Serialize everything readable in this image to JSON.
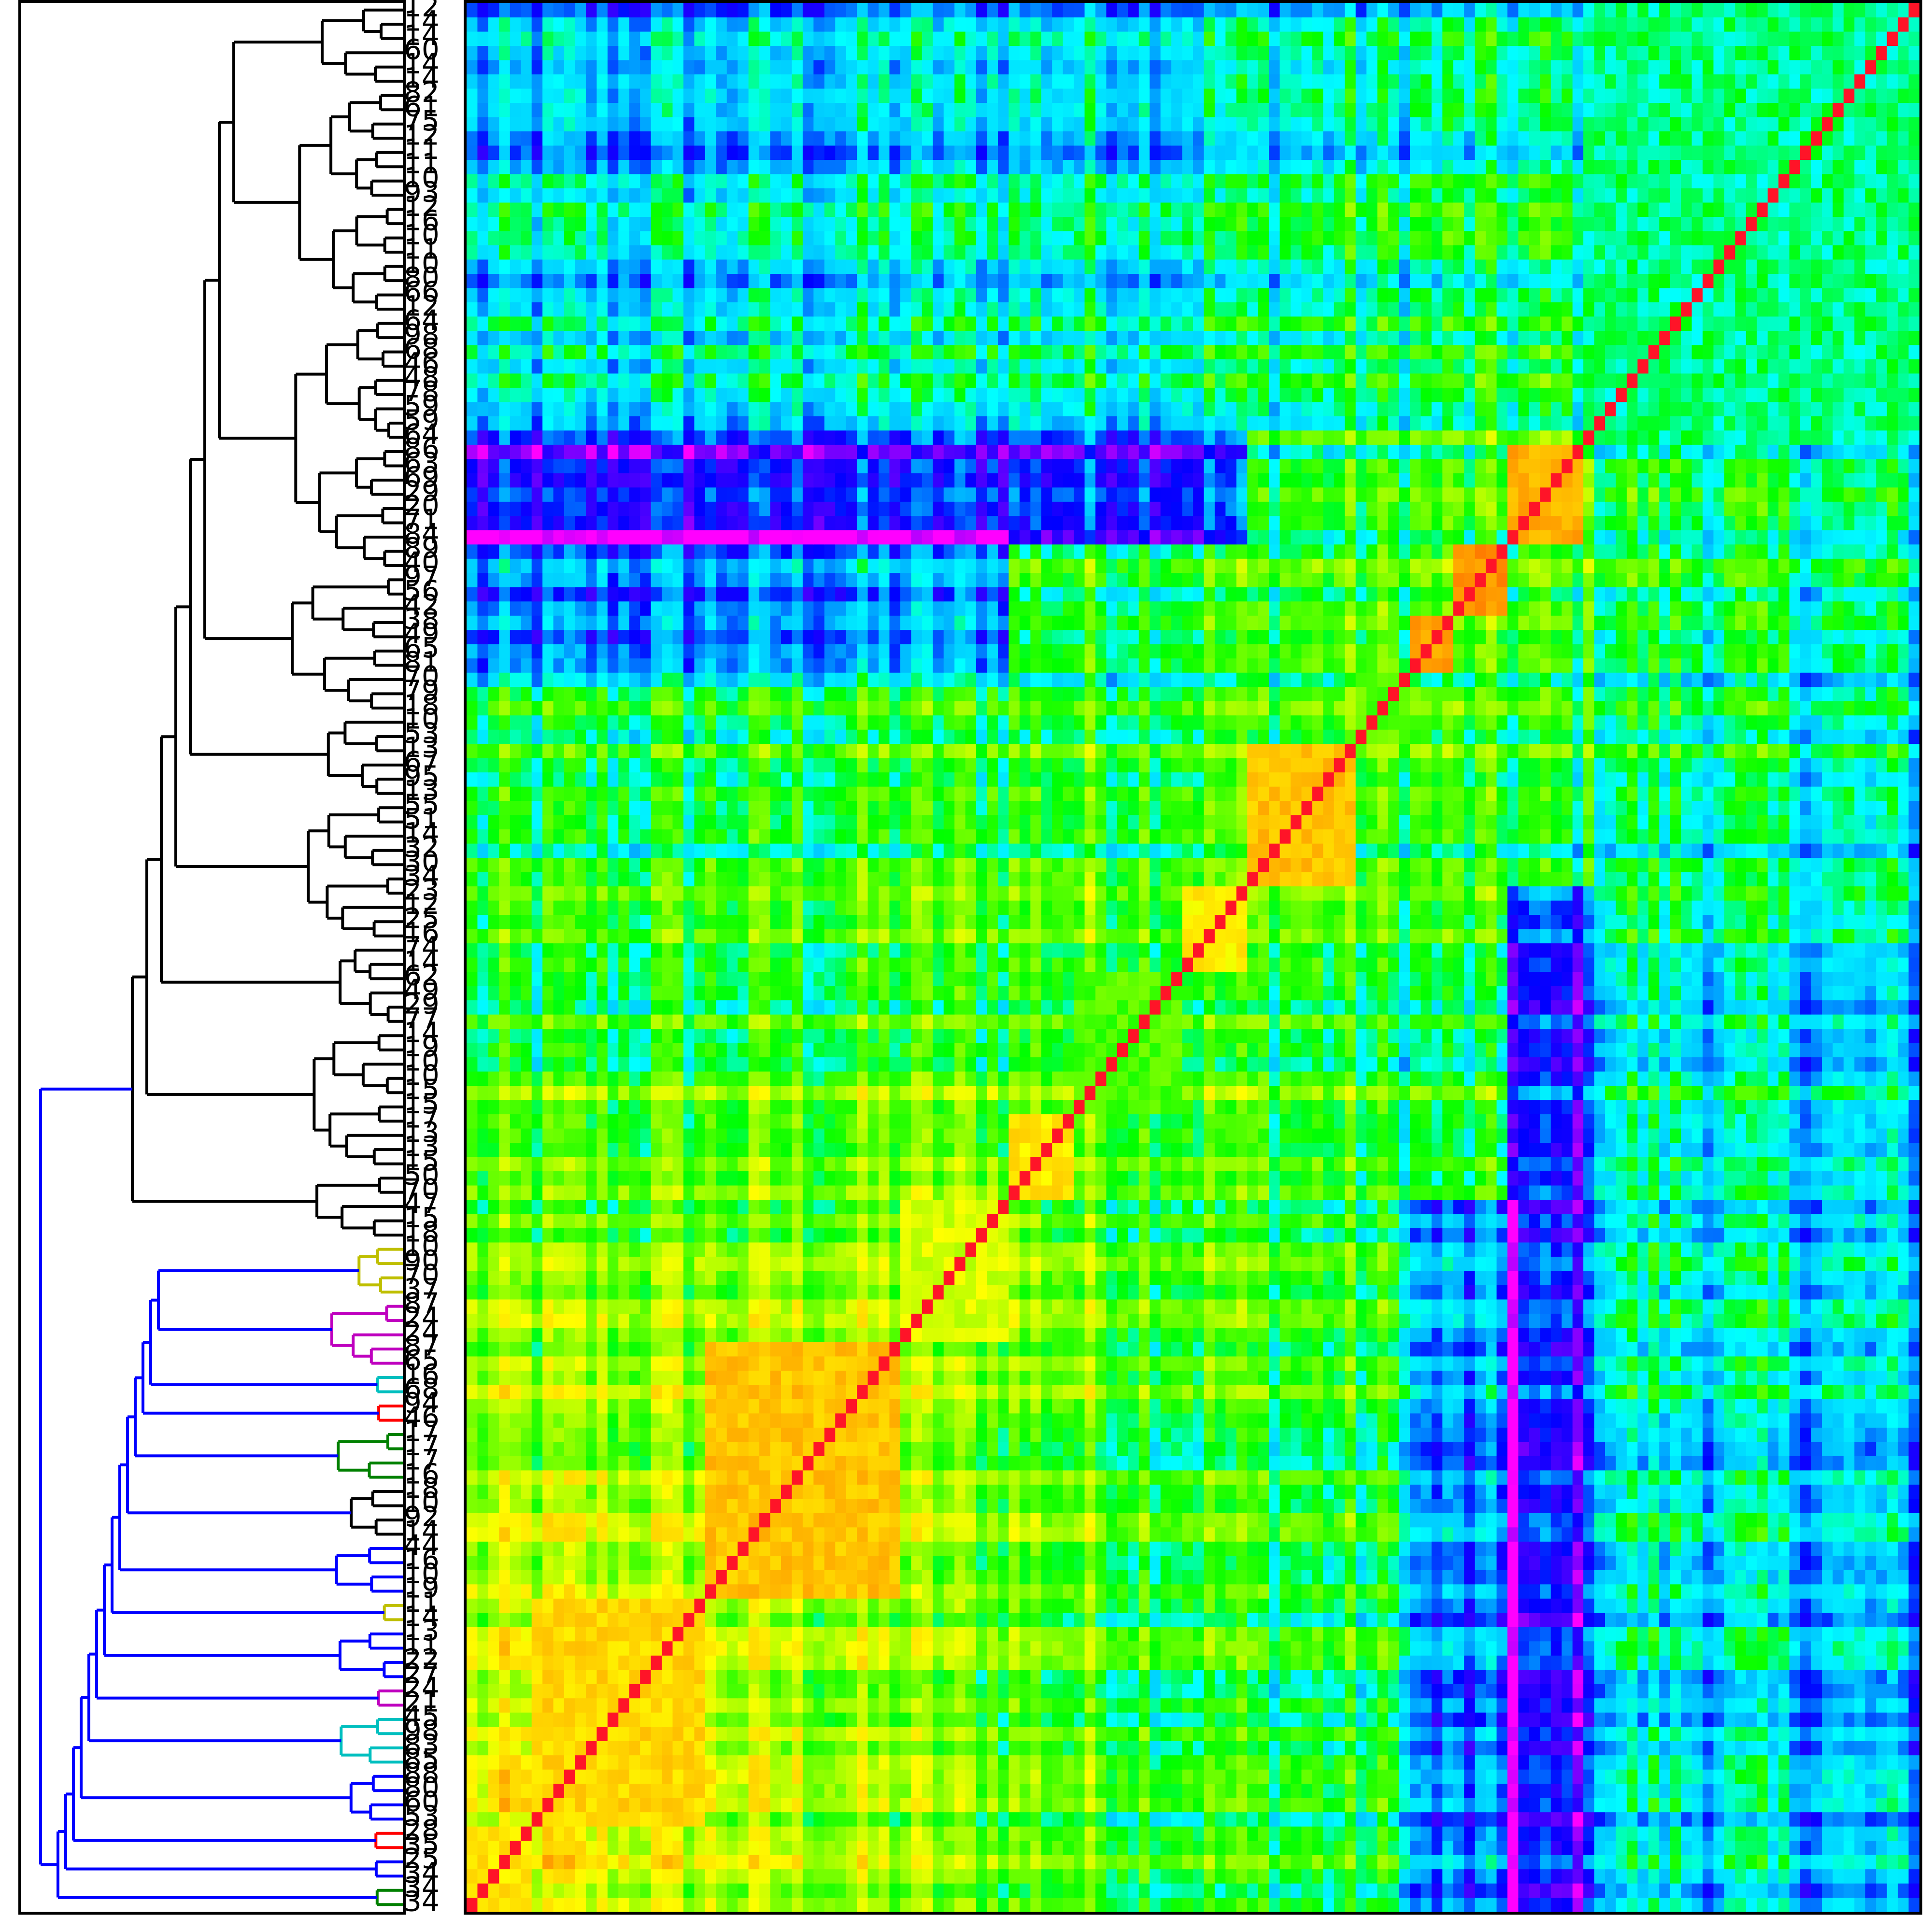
{
  "chart_data": {
    "type": "heatmap",
    "subtype": "clustered similarity matrix with left dendrogram",
    "title": "",
    "xlabel": "",
    "ylabel": "",
    "colormap": "gist_rainbow style: magenta (low) → blue → cyan → green → yellow → orange → red (high)",
    "diagonal_value": 1.0,
    "value_range": [
      0.0,
      1.0
    ],
    "grid": false,
    "legend": "none",
    "n_leaves": 134,
    "row_labels_top_to_bottom": [
      "12",
      "14",
      "14",
      "60",
      "14",
      "14",
      "82",
      "61",
      "75",
      "12",
      "11",
      "11",
      "10",
      "93",
      "12",
      "16",
      "10",
      "11",
      "10",
      "80",
      "66",
      "12",
      "64",
      "98",
      "68",
      "46",
      "48",
      "78",
      "59",
      "59",
      "64",
      "86",
      "63",
      "69",
      "29",
      "20",
      "71",
      "84",
      "89",
      "40",
      "97",
      "56",
      "42",
      "38",
      "49",
      "65",
      "81",
      "70",
      "79",
      "18",
      "10",
      "53",
      "13",
      "67",
      "95",
      "13",
      "55",
      "51",
      "14",
      "32",
      "30",
      "34",
      "23",
      "12",
      "25",
      "16",
      "74",
      "14",
      "62",
      "49",
      "29",
      "77",
      "14",
      "19",
      "10",
      "10",
      "15",
      "15",
      "17",
      "13",
      "13",
      "15",
      "50",
      "70",
      "47",
      "15",
      "18",
      "10",
      "90",
      "70",
      "37",
      "87",
      "24",
      "24",
      "87",
      "65",
      "16",
      "68",
      "94",
      "46",
      "17",
      "17",
      "17",
      "16",
      "18",
      "10",
      "92",
      "14",
      "44",
      "16",
      "10",
      "19",
      "11",
      "14",
      "13",
      "11",
      "22",
      "27",
      "24",
      "21",
      "45",
      "98",
      "83",
      "85",
      "88",
      "80",
      "60",
      "53",
      "28",
      "35",
      "25",
      "34",
      "34",
      "34"
    ],
    "diagonal_blocks_top_to_bottom": [
      {
        "rows": "first ≈6 (12,14,14,60,14,14)",
        "internal_similarity": 0.8
      },
      {
        "rows": "82 → 98 group",
        "internal_similarity": 0.82
      },
      {
        "rows": "68 → 89 group",
        "internal_similarity": 0.85
      },
      {
        "rows": "40 → 79 group",
        "internal_similarity": 0.75
      },
      {
        "rows": "18 → 95 group",
        "internal_similarity": 0.8
      },
      {
        "rows": "34 → 16 group",
        "internal_similarity": 0.72
      },
      {
        "rows": "62 → 77 group",
        "internal_similarity": 0.8
      },
      {
        "rows": "14 → 15 group",
        "internal_similarity": 0.85
      },
      {
        "rows": "70 → 47 group",
        "internal_similarity": 0.7
      },
      {
        "rows": "10 → 70 group",
        "internal_similarity": 0.9
      },
      {
        "rows": "24 → 65 group",
        "internal_similarity": 0.92
      },
      {
        "rows": "17 → 16 group",
        "internal_similarity": 0.88
      }
    ],
    "dendrogram_branch_colors": [
      "#000000",
      "#0000ff",
      "#bfbf00",
      "#bf00bf",
      "#00bfbf",
      "#ff0000",
      "#008000"
    ],
    "dendrogram_coloured_clusters_top_to_bottom": [
      {
        "color": "#bfbf00",
        "leaves": "10, 90, 70, 37"
      },
      {
        "color": "#bf00bf",
        "leaves": "87, 24, 24, 87, 65"
      },
      {
        "color": "#00bfbf",
        "leaves": "16, 68"
      },
      {
        "color": "#ff0000",
        "leaves": "94, 46"
      },
      {
        "color": "#008000",
        "leaves": "17, 17, 17, 16"
      },
      {
        "color": "#000000",
        "leaves": "18, 10, 92, 14"
      },
      {
        "color": "#bfbf00",
        "leaves": "10, 19"
      },
      {
        "color": "#bf00bf",
        "leaves": "27, 24"
      },
      {
        "color": "#00bfbf",
        "leaves": "45, 98"
      },
      {
        "color": "#ff0000",
        "leaves": "80, 60"
      },
      {
        "color": "#008000",
        "leaves": "28, 35"
      }
    ]
  }
}
